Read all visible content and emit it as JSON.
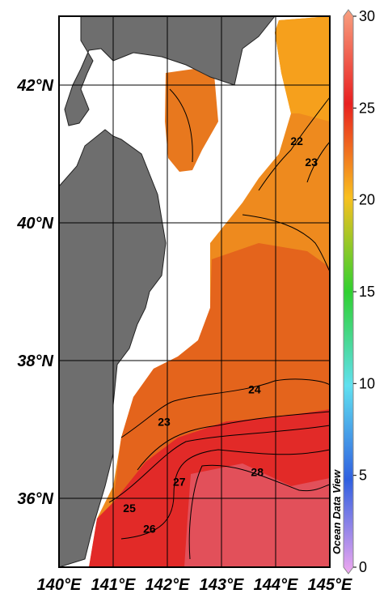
{
  "map": {
    "lonlim": [
      140,
      145
    ],
    "latlim": [
      35,
      43
    ],
    "xticks": [
      {
        "value": 140,
        "label": "140°E"
      },
      {
        "value": 141,
        "label": "141°E"
      },
      {
        "value": 142,
        "label": "142°E"
      },
      {
        "value": 143,
        "label": "143°E"
      },
      {
        "value": 144,
        "label": "144°E"
      },
      {
        "value": 145,
        "label": "145°E"
      }
    ],
    "yticks": [
      {
        "value": 36,
        "label": "36°N"
      },
      {
        "value": 38,
        "label": "38°N"
      },
      {
        "value": 40,
        "label": "40°N"
      },
      {
        "value": 42,
        "label": "42°N"
      }
    ],
    "grid": true,
    "contour_labels": [
      {
        "value": 22,
        "lon": 144.39,
        "lat": 41.19
      },
      {
        "value": 23,
        "lon": 144.66,
        "lat": 40.88
      },
      {
        "value": 24,
        "lon": 143.61,
        "lat": 37.58
      },
      {
        "value": 23,
        "lon": 141.94,
        "lat": 37.11
      },
      {
        "value": 25,
        "lon": 141.3,
        "lat": 35.86
      },
      {
        "value": 26,
        "lon": 141.67,
        "lat": 35.56
      },
      {
        "value": 27,
        "lon": 142.22,
        "lat": 36.24
      },
      {
        "value": 28,
        "lon": 143.66,
        "lat": 36.38
      }
    ],
    "colorbar": {
      "lim": [
        0,
        30
      ],
      "ticks": [
        0,
        5,
        10,
        15,
        20,
        25,
        30
      ],
      "colors": [
        "#f0a8f0",
        "#3060e0",
        "#60e0f0",
        "#30d030",
        "#f8c020",
        "#e82020",
        "#f8a080"
      ]
    },
    "watermark": "Ocean Data View"
  }
}
